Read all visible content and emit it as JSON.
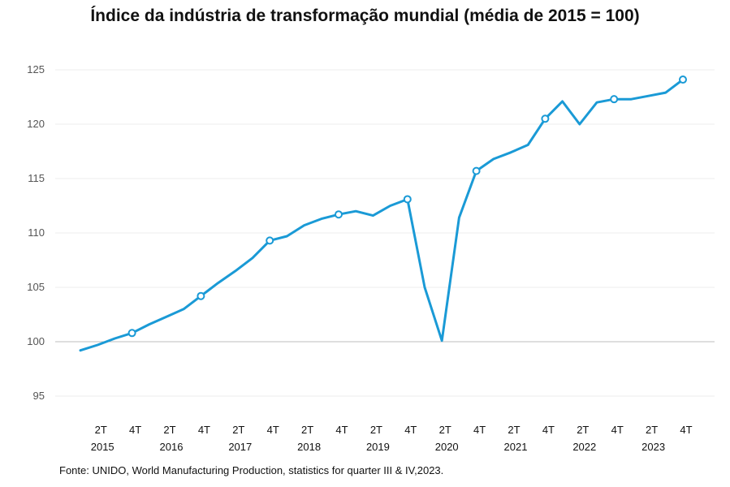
{
  "chart_data": {
    "type": "line",
    "title": "Índice da indústria de transformação mundial (média de 2015 = 100)",
    "source": "Fonte: UNIDO, World Manufacturing Production, statistics for quarter III & IV,2023.",
    "xlabel": "",
    "ylabel": "",
    "ylim": [
      93,
      126
    ],
    "yticks": [
      95,
      100,
      105,
      110,
      115,
      120,
      125
    ],
    "grid": true,
    "legend": "none",
    "line_color": "#1a9ad6",
    "x": [
      "1T 2015",
      "2T 2015",
      "3T 2015",
      "4T 2015",
      "1T 2016",
      "2T 2016",
      "3T 2016",
      "4T 2016",
      "1T 2017",
      "2T 2017",
      "3T 2017",
      "4T 2017",
      "1T 2018",
      "2T 2018",
      "3T 2018",
      "4T 2018",
      "1T 2019",
      "2T 2019",
      "3T 2019",
      "4T 2019",
      "1T 2020",
      "2T 2020",
      "3T 2020",
      "4T 2020",
      "1T 2021",
      "2T 2021",
      "3T 2021",
      "4T 2021",
      "1T 2022",
      "2T 2022",
      "3T 2022",
      "4T 2022",
      "1T 2023",
      "2T 2023",
      "3T 2023",
      "4T 2023"
    ],
    "values": [
      99.2,
      99.7,
      100.3,
      100.8,
      101.6,
      102.3,
      103.0,
      104.2,
      105.4,
      106.5,
      107.7,
      109.3,
      109.7,
      110.7,
      111.3,
      111.7,
      112.0,
      111.6,
      112.5,
      113.1,
      105.0,
      100.1,
      111.4,
      115.7,
      116.8,
      117.4,
      118.1,
      120.5,
      122.1,
      120.0,
      122.0,
      122.3,
      122.3,
      122.6,
      122.9,
      124.1
    ],
    "markers": [
      3,
      7,
      11,
      15,
      19,
      23,
      27,
      31,
      35
    ],
    "tick_labels": [
      {
        "index": 1,
        "quarter": "2T",
        "year": "2015"
      },
      {
        "index": 3,
        "quarter": "4T",
        "year": ""
      },
      {
        "index": 5,
        "quarter": "2T",
        "year": "2016"
      },
      {
        "index": 7,
        "quarter": "4T",
        "year": ""
      },
      {
        "index": 9,
        "quarter": "2T",
        "year": "2017"
      },
      {
        "index": 11,
        "quarter": "4T",
        "year": ""
      },
      {
        "index": 13,
        "quarter": "2T",
        "year": "2018"
      },
      {
        "index": 15,
        "quarter": "4T",
        "year": ""
      },
      {
        "index": 17,
        "quarter": "2T",
        "year": "2019"
      },
      {
        "index": 19,
        "quarter": "4T",
        "year": ""
      },
      {
        "index": 21,
        "quarter": "2T",
        "year": "2020"
      },
      {
        "index": 23,
        "quarter": "4T",
        "year": ""
      },
      {
        "index": 25,
        "quarter": "2T",
        "year": "2021"
      },
      {
        "index": 27,
        "quarter": "4T",
        "year": ""
      },
      {
        "index": 29,
        "quarter": "2T",
        "year": "2022"
      },
      {
        "index": 31,
        "quarter": "4T",
        "year": ""
      },
      {
        "index": 33,
        "quarter": "2T",
        "year": "2023"
      },
      {
        "index": 35,
        "quarter": "4T",
        "year": ""
      }
    ]
  }
}
